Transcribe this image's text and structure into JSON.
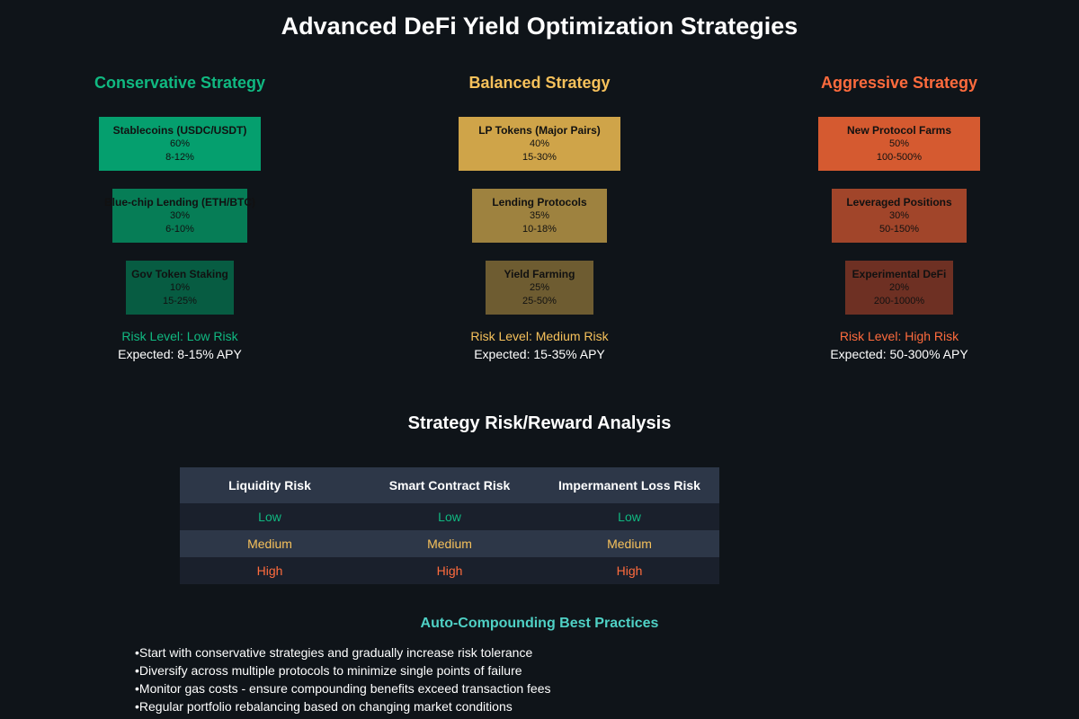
{
  "title": "Advanced DeFi Yield Optimization Strategies",
  "strategies": [
    {
      "title": "Conservative Strategy",
      "color": "#10b981",
      "risk": "Risk Level: Low Risk",
      "expected": "Expected: 8-15% APY",
      "items": [
        {
          "name": "Stablecoins (USDC/USDT)",
          "allocation": "60%",
          "apy": "8-12%",
          "color": "#059f6e"
        },
        {
          "name": "Blue-chip Lending (ETH/BTC)",
          "allocation": "30%",
          "apy": "6-10%",
          "color": "#067d56"
        },
        {
          "name": "Gov Token Staking",
          "allocation": "10%",
          "apy": "15-25%",
          "color": "#075c42"
        }
      ]
    },
    {
      "title": "Balanced Strategy",
      "color": "#f6c15b",
      "risk": "Risk Level: Medium Risk",
      "expected": "Expected: 15-35% APY",
      "items": [
        {
          "name": "LP Tokens (Major Pairs)",
          "allocation": "40%",
          "apy": "15-30%",
          "color": "#cfa449"
        },
        {
          "name": "Lending Protocols",
          "allocation": "35%",
          "apy": "10-18%",
          "color": "#9e823f"
        },
        {
          "name": "Yield Farming",
          "allocation": "25%",
          "apy": "25-50%",
          "color": "#6e5c31"
        }
      ]
    },
    {
      "title": "Aggressive Strategy",
      "color": "#ff6b3d",
      "risk": "Risk Level: High Risk",
      "expected": "Expected: 50-300% APY",
      "items": [
        {
          "name": "New Protocol Farms",
          "allocation": "50%",
          "apy": "100-500%",
          "color": "#d55a30"
        },
        {
          "name": "Leveraged Positions",
          "allocation": "30%",
          "apy": "50-150%",
          "color": "#a1452a"
        },
        {
          "name": "Experimental DeFi",
          "allocation": "20%",
          "apy": "200-1000%",
          "color": "#6e3023"
        }
      ]
    }
  ],
  "analysis": {
    "title": "Strategy Risk/Reward Analysis",
    "headers": [
      "Liquidity Risk",
      "Smart Contract Risk",
      "Impermanent Loss Risk"
    ],
    "rows": [
      [
        "Low",
        "Low",
        "Low"
      ],
      [
        "Medium",
        "Medium",
        "Medium"
      ],
      [
        "High",
        "High",
        "High"
      ]
    ]
  },
  "best_practices": {
    "title": "Auto-Compounding Best Practices",
    "items": [
      "Start with conservative strategies and gradually increase risk tolerance",
      "Diversify across multiple protocols to minimize single points of failure",
      "Monitor gas costs - ensure compounding benefits exceed transaction fees",
      "Regular portfolio rebalancing based on changing market conditions"
    ]
  }
}
